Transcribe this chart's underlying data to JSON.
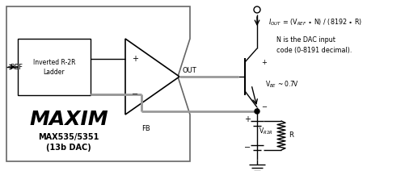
{
  "bg_color": "#ffffff",
  "lc": "#000000",
  "gc": "#999999",
  "border_c": "#666666",
  "figsize": [
    5.02,
    2.12
  ],
  "dpi": 100,
  "ref": "REF",
  "box1": "Inverted R-2R",
  "box2": "Ladder",
  "out": "OUT",
  "fb": "FB",
  "maxim": "MAXIM",
  "chip1": "MAX535/5351",
  "chip2": "(13b DAC)",
  "plus": "+",
  "minus": "−",
  "vbe_text": "V",
  "vbe_sub": "BE",
  "vbe_rest": " ~ 0.7V",
  "vr2r_text": "V",
  "vr2r_sub": "R2R",
  "r_label": "R",
  "iout_main": "I",
  "iout_sub": "OUT",
  "iout_rest": " = (V",
  "iout_ref": "REF",
  "iout_end": " • N) / (8192 • R)",
  "n_line1": "N is the DAC input",
  "n_line2": "code (0-8191 decimal)."
}
